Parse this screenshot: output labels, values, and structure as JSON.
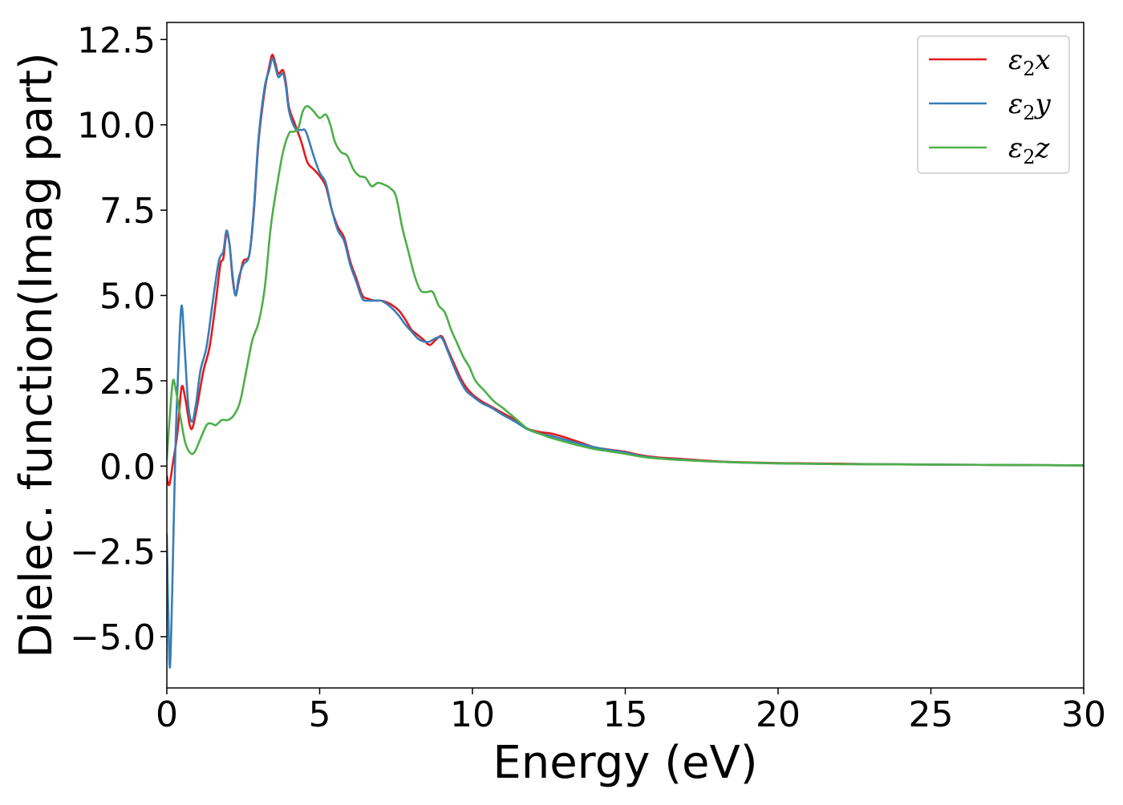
{
  "chart_data": {
    "type": "line",
    "xlabel": "Energy (eV)",
    "ylabel": "Dielec. function(Imag part)",
    "xlim": [
      0,
      30
    ],
    "ylim": [
      -6.5,
      13.0
    ],
    "x_ticks": [
      0,
      5,
      10,
      15,
      20,
      25,
      30
    ],
    "x_tick_labels": [
      "0",
      "5",
      "10",
      "15",
      "20",
      "25",
      "30"
    ],
    "y_ticks": [
      -5.0,
      -2.5,
      0.0,
      2.5,
      5.0,
      7.5,
      10.0,
      12.5
    ],
    "y_tick_labels": [
      "−5.0",
      "−2.5",
      "0.0",
      "2.5",
      "5.0",
      "7.5",
      "10.0",
      "12.5"
    ],
    "grid": false,
    "legend_position": "top-right",
    "series": [
      {
        "name": "ε₂x",
        "legend_main": "ε",
        "legend_sub": "2",
        "legend_var": "x",
        "color": "#e41a1c",
        "points": [
          [
            0.0,
            -0.3
          ],
          [
            0.08,
            -0.55
          ],
          [
            0.2,
            0.1
          ],
          [
            0.35,
            1.0
          ],
          [
            0.48,
            2.3
          ],
          [
            0.6,
            2.0
          ],
          [
            0.75,
            1.2
          ],
          [
            0.85,
            1.15
          ],
          [
            1.0,
            1.8
          ],
          [
            1.2,
            2.8
          ],
          [
            1.4,
            3.5
          ],
          [
            1.6,
            4.8
          ],
          [
            1.75,
            5.9
          ],
          [
            1.85,
            6.1
          ],
          [
            1.95,
            6.8
          ],
          [
            2.05,
            6.5
          ],
          [
            2.15,
            5.5
          ],
          [
            2.25,
            5.0
          ],
          [
            2.35,
            5.4
          ],
          [
            2.5,
            6.0
          ],
          [
            2.7,
            6.2
          ],
          [
            2.85,
            7.5
          ],
          [
            3.0,
            9.5
          ],
          [
            3.2,
            11.0
          ],
          [
            3.35,
            11.7
          ],
          [
            3.45,
            12.05
          ],
          [
            3.55,
            11.8
          ],
          [
            3.65,
            11.5
          ],
          [
            3.8,
            11.6
          ],
          [
            3.9,
            11.2
          ],
          [
            4.0,
            10.5
          ],
          [
            4.2,
            10.0
          ],
          [
            4.4,
            9.5
          ],
          [
            4.6,
            8.9
          ],
          [
            4.8,
            8.7
          ],
          [
            5.0,
            8.5
          ],
          [
            5.2,
            8.2
          ],
          [
            5.4,
            7.5
          ],
          [
            5.6,
            7.0
          ],
          [
            5.8,
            6.7
          ],
          [
            6.0,
            6.0
          ],
          [
            6.2,
            5.5
          ],
          [
            6.4,
            5.0
          ],
          [
            6.6,
            4.9
          ],
          [
            6.8,
            4.85
          ],
          [
            7.0,
            4.85
          ],
          [
            7.2,
            4.8
          ],
          [
            7.4,
            4.7
          ],
          [
            7.6,
            4.55
          ],
          [
            7.8,
            4.3
          ],
          [
            8.0,
            4.0
          ],
          [
            8.2,
            3.85
          ],
          [
            8.4,
            3.7
          ],
          [
            8.6,
            3.55
          ],
          [
            8.8,
            3.7
          ],
          [
            9.0,
            3.8
          ],
          [
            9.2,
            3.4
          ],
          [
            9.4,
            3.0
          ],
          [
            9.6,
            2.6
          ],
          [
            9.8,
            2.3
          ],
          [
            10.0,
            2.1
          ],
          [
            10.3,
            1.9
          ],
          [
            10.6,
            1.75
          ],
          [
            11.0,
            1.55
          ],
          [
            11.4,
            1.35
          ],
          [
            11.8,
            1.1
          ],
          [
            12.2,
            1.0
          ],
          [
            12.6,
            0.95
          ],
          [
            13.0,
            0.85
          ],
          [
            13.5,
            0.7
          ],
          [
            14.0,
            0.55
          ],
          [
            14.5,
            0.48
          ],
          [
            15.0,
            0.42
          ],
          [
            15.5,
            0.32
          ],
          [
            16.0,
            0.26
          ],
          [
            17.0,
            0.2
          ],
          [
            18.0,
            0.14
          ],
          [
            19.0,
            0.11
          ],
          [
            20.0,
            0.09
          ],
          [
            22.0,
            0.07
          ],
          [
            24.0,
            0.05
          ],
          [
            26.0,
            0.04
          ],
          [
            28.0,
            0.03
          ],
          [
            30.0,
            0.02
          ]
        ]
      },
      {
        "name": "ε₂y",
        "legend_main": "ε",
        "legend_sub": "2",
        "legend_var": "y",
        "color": "#377eb8",
        "points": [
          [
            0.0,
            -2.0
          ],
          [
            0.04,
            -4.0
          ],
          [
            0.1,
            -5.9
          ],
          [
            0.18,
            -3.5
          ],
          [
            0.28,
            0.5
          ],
          [
            0.38,
            3.0
          ],
          [
            0.48,
            4.7
          ],
          [
            0.58,
            3.5
          ],
          [
            0.7,
            1.8
          ],
          [
            0.82,
            1.3
          ],
          [
            0.95,
            1.8
          ],
          [
            1.1,
            2.8
          ],
          [
            1.3,
            3.5
          ],
          [
            1.5,
            4.8
          ],
          [
            1.7,
            6.0
          ],
          [
            1.85,
            6.3
          ],
          [
            1.95,
            6.9
          ],
          [
            2.05,
            6.5
          ],
          [
            2.15,
            5.6
          ],
          [
            2.25,
            5.0
          ],
          [
            2.35,
            5.5
          ],
          [
            2.5,
            5.9
          ],
          [
            2.7,
            6.2
          ],
          [
            2.85,
            7.6
          ],
          [
            3.0,
            9.6
          ],
          [
            3.2,
            11.1
          ],
          [
            3.35,
            11.6
          ],
          [
            3.45,
            11.95
          ],
          [
            3.55,
            11.7
          ],
          [
            3.65,
            11.4
          ],
          [
            3.8,
            11.5
          ],
          [
            3.9,
            11.1
          ],
          [
            4.0,
            10.4
          ],
          [
            4.2,
            9.9
          ],
          [
            4.4,
            9.85
          ],
          [
            4.55,
            9.8
          ],
          [
            4.8,
            9.1
          ],
          [
            5.0,
            8.6
          ],
          [
            5.2,
            8.3
          ],
          [
            5.4,
            7.5
          ],
          [
            5.6,
            6.9
          ],
          [
            5.8,
            6.6
          ],
          [
            6.0,
            5.9
          ],
          [
            6.2,
            5.4
          ],
          [
            6.4,
            4.9
          ],
          [
            6.6,
            4.85
          ],
          [
            6.8,
            4.85
          ],
          [
            7.0,
            4.85
          ],
          [
            7.2,
            4.75
          ],
          [
            7.4,
            4.6
          ],
          [
            7.6,
            4.4
          ],
          [
            7.8,
            4.15
          ],
          [
            8.0,
            3.95
          ],
          [
            8.2,
            3.75
          ],
          [
            8.4,
            3.65
          ],
          [
            8.6,
            3.65
          ],
          [
            8.8,
            3.75
          ],
          [
            9.0,
            3.75
          ],
          [
            9.2,
            3.35
          ],
          [
            9.4,
            2.9
          ],
          [
            9.6,
            2.5
          ],
          [
            9.8,
            2.2
          ],
          [
            10.0,
            2.05
          ],
          [
            10.3,
            1.85
          ],
          [
            10.6,
            1.72
          ],
          [
            11.0,
            1.5
          ],
          [
            11.4,
            1.3
          ],
          [
            11.8,
            1.08
          ],
          [
            12.2,
            0.95
          ],
          [
            12.6,
            0.88
          ],
          [
            13.0,
            0.78
          ],
          [
            13.5,
            0.66
          ],
          [
            14.0,
            0.55
          ],
          [
            14.5,
            0.47
          ],
          [
            15.0,
            0.4
          ],
          [
            15.5,
            0.3
          ],
          [
            16.0,
            0.24
          ],
          [
            17.0,
            0.18
          ],
          [
            18.0,
            0.13
          ],
          [
            19.0,
            0.1
          ],
          [
            20.0,
            0.08
          ],
          [
            22.0,
            0.06
          ],
          [
            24.0,
            0.05
          ],
          [
            26.0,
            0.04
          ],
          [
            28.0,
            0.03
          ],
          [
            30.0,
            0.02
          ]
        ]
      },
      {
        "name": "ε₂z",
        "legend_main": "ε",
        "legend_sub": "2",
        "legend_var": "z",
        "color": "#4daf4a",
        "points": [
          [
            0.0,
            0.2
          ],
          [
            0.1,
            1.5
          ],
          [
            0.2,
            2.5
          ],
          [
            0.3,
            2.2
          ],
          [
            0.45,
            1.4
          ],
          [
            0.6,
            0.7
          ],
          [
            0.75,
            0.4
          ],
          [
            0.9,
            0.4
          ],
          [
            1.1,
            0.8
          ],
          [
            1.3,
            1.2
          ],
          [
            1.45,
            1.25
          ],
          [
            1.6,
            1.2
          ],
          [
            1.8,
            1.35
          ],
          [
            2.0,
            1.35
          ],
          [
            2.2,
            1.5
          ],
          [
            2.4,
            1.9
          ],
          [
            2.6,
            2.8
          ],
          [
            2.8,
            3.7
          ],
          [
            3.0,
            4.2
          ],
          [
            3.2,
            5.2
          ],
          [
            3.4,
            7.0
          ],
          [
            3.6,
            8.2
          ],
          [
            3.8,
            9.2
          ],
          [
            4.0,
            9.75
          ],
          [
            4.15,
            9.8
          ],
          [
            4.3,
            9.9
          ],
          [
            4.45,
            10.4
          ],
          [
            4.6,
            10.55
          ],
          [
            4.8,
            10.4
          ],
          [
            5.0,
            10.2
          ],
          [
            5.2,
            10.3
          ],
          [
            5.35,
            10.0
          ],
          [
            5.5,
            9.5
          ],
          [
            5.7,
            9.2
          ],
          [
            5.9,
            9.1
          ],
          [
            6.1,
            8.7
          ],
          [
            6.3,
            8.5
          ],
          [
            6.5,
            8.45
          ],
          [
            6.7,
            8.2
          ],
          [
            6.9,
            8.3
          ],
          [
            7.1,
            8.25
          ],
          [
            7.3,
            8.15
          ],
          [
            7.5,
            7.9
          ],
          [
            7.7,
            7.0
          ],
          [
            7.9,
            6.3
          ],
          [
            8.1,
            5.6
          ],
          [
            8.3,
            5.15
          ],
          [
            8.5,
            5.1
          ],
          [
            8.7,
            5.1
          ],
          [
            8.9,
            4.7
          ],
          [
            9.1,
            4.5
          ],
          [
            9.3,
            4.0
          ],
          [
            9.5,
            3.6
          ],
          [
            9.7,
            3.2
          ],
          [
            9.9,
            2.9
          ],
          [
            10.1,
            2.5
          ],
          [
            10.4,
            2.2
          ],
          [
            10.7,
            1.9
          ],
          [
            11.0,
            1.7
          ],
          [
            11.4,
            1.4
          ],
          [
            11.8,
            1.1
          ],
          [
            12.2,
            0.95
          ],
          [
            12.6,
            0.82
          ],
          [
            13.0,
            0.72
          ],
          [
            13.5,
            0.6
          ],
          [
            14.0,
            0.5
          ],
          [
            14.5,
            0.43
          ],
          [
            15.0,
            0.36
          ],
          [
            15.5,
            0.28
          ],
          [
            16.0,
            0.23
          ],
          [
            17.0,
            0.17
          ],
          [
            18.0,
            0.13
          ],
          [
            19.0,
            0.1
          ],
          [
            20.0,
            0.08
          ],
          [
            22.0,
            0.06
          ],
          [
            24.0,
            0.05
          ],
          [
            26.0,
            0.04
          ],
          [
            28.0,
            0.03
          ],
          [
            30.0,
            0.02
          ]
        ]
      }
    ]
  }
}
